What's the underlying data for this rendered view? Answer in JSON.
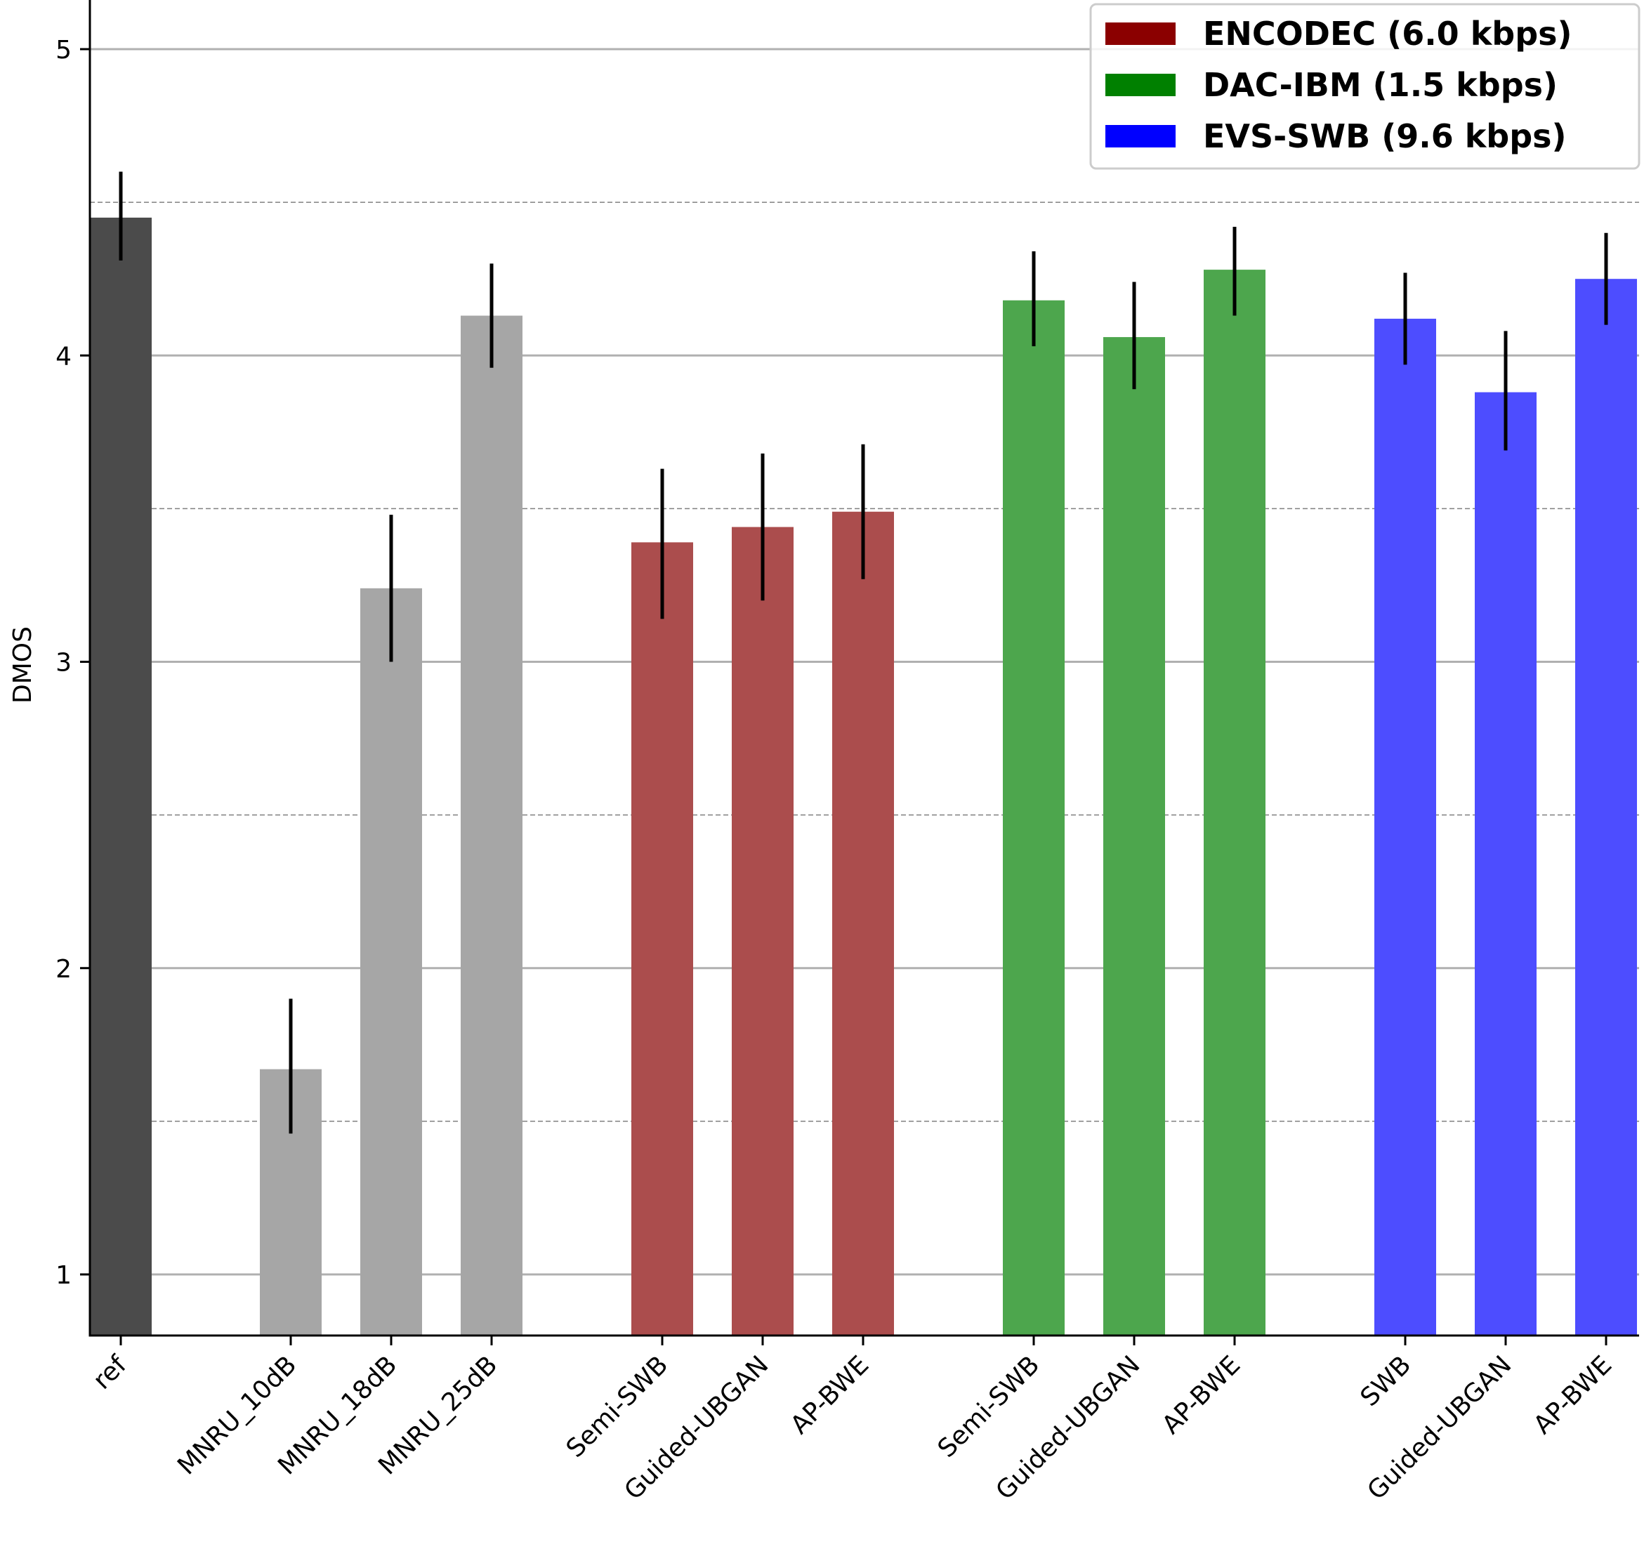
{
  "chart_data": {
    "type": "bar",
    "title": "",
    "xlabel": "",
    "ylabel": "DMOS",
    "ylim": [
      0.8,
      5.2
    ],
    "yticks": [
      "1",
      "2",
      "3",
      "4",
      "5"
    ],
    "grid": {
      "major": [
        1,
        2,
        3,
        4,
        5
      ],
      "minor_dashed": [
        1.5,
        2.5,
        3.5,
        4.5
      ]
    },
    "legend_position": "top-right",
    "legend": [
      {
        "label": "ENCODEC (6.0 kbps)",
        "color": "#8b0000"
      },
      {
        "label": "DAC-IBM (1.5 kbps)",
        "color": "#008000"
      },
      {
        "label": "EVS-SWB (9.6 kbps)",
        "color": "#0000ff"
      }
    ],
    "categories": [
      "ref",
      "MNRU_10dB",
      "MNRU_18dB",
      "MNRU_25dB",
      "Semi-SWB",
      "Guided-UBGAN",
      "AP-BWE",
      "Semi-SWB",
      "Guided-UBGAN",
      "AP-BWE",
      "SWB",
      "Guided-UBGAN",
      "AP-BWE"
    ],
    "values": [
      4.45,
      1.67,
      3.24,
      4.13,
      3.39,
      3.44,
      3.49,
      4.18,
      4.06,
      4.28,
      4.12,
      3.88,
      4.25
    ],
    "err_low": [
      4.31,
      1.46,
      3.0,
      3.96,
      3.14,
      3.2,
      3.27,
      4.03,
      3.89,
      4.13,
      3.97,
      3.69,
      4.1
    ],
    "err_high": [
      4.6,
      1.9,
      3.48,
      4.3,
      3.63,
      3.68,
      3.71,
      4.34,
      4.24,
      4.42,
      4.27,
      4.08,
      4.4
    ],
    "bar_colors": [
      "#4b4b4b",
      "#a6a6a6",
      "#a6a6a6",
      "#a6a6a6",
      "#ab4d4d",
      "#ab4d4d",
      "#ab4d4d",
      "#4da64d",
      "#4da64d",
      "#4da64d",
      "#4d4dff",
      "#4d4dff",
      "#4d4dff"
    ]
  }
}
